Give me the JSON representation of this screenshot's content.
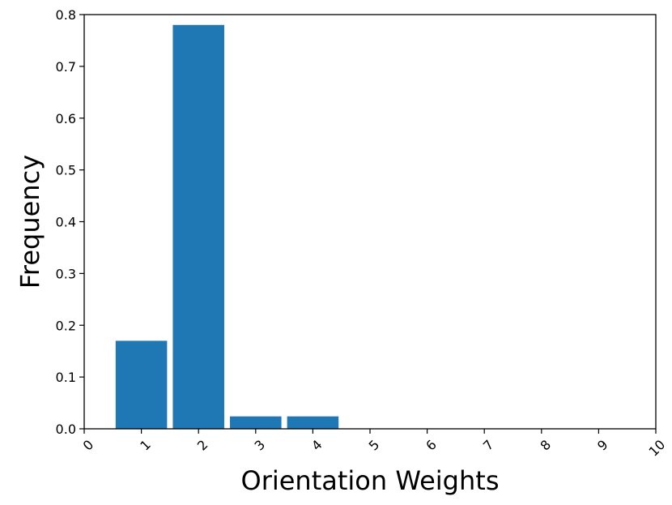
{
  "chart_data": {
    "type": "bar",
    "xlabel": "Orientation Weights",
    "ylabel": "Frequency",
    "x": [
      1,
      2,
      3,
      4
    ],
    "values": [
      0.17,
      0.78,
      0.024,
      0.024
    ],
    "xlim": [
      0,
      10
    ],
    "ylim": [
      0,
      0.8
    ],
    "xticks": [
      "0",
      "1",
      "2",
      "3",
      "4",
      "5",
      "6",
      "7",
      "8",
      "9",
      "10"
    ],
    "yticks": [
      "0.0",
      "0.1",
      "0.2",
      "0.3",
      "0.4",
      "0.5",
      "0.6",
      "0.7",
      "0.8"
    ],
    "bar_color": "#1f77b4",
    "grid": false,
    "x_tick_rotation": 45
  }
}
